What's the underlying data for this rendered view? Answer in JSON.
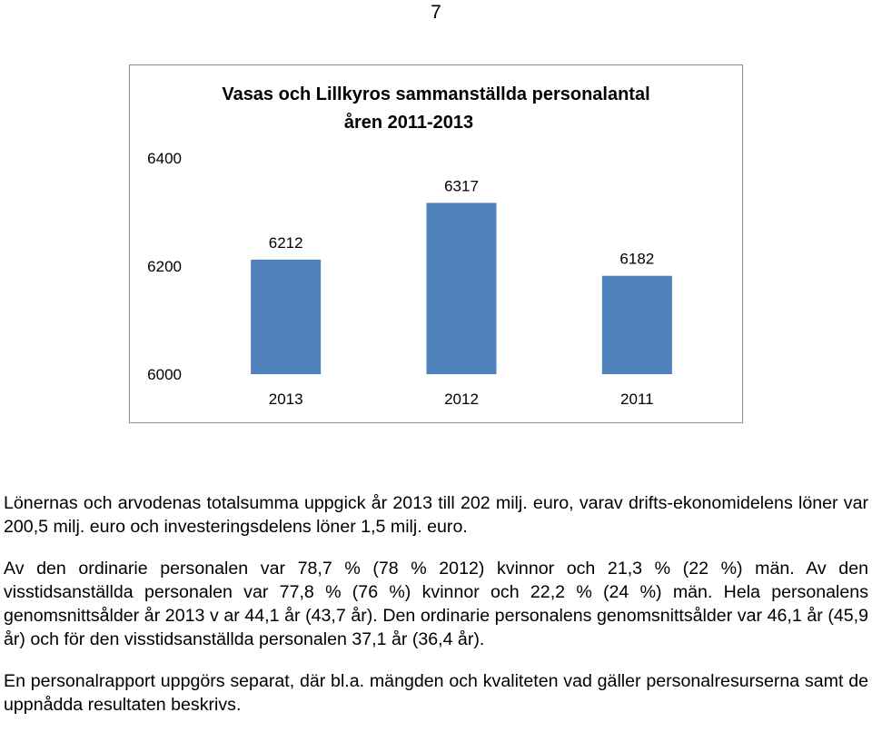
{
  "page": {
    "number": "7"
  },
  "chart_data": {
    "type": "bar",
    "title_lines": [
      "Vasas och Lillkyros sammanställda personalantal",
      "åren 2011-2013"
    ],
    "categories": [
      "2013",
      "2012",
      "2011"
    ],
    "values": [
      6212,
      6317,
      6182
    ],
    "data_labels": [
      "6212",
      "6317",
      "6182"
    ],
    "ylim": [
      6000,
      6400
    ],
    "yticks": [
      "6000",
      "6200",
      "6400"
    ],
    "grid": false,
    "legend": "none",
    "bar_color": "#4F81BD"
  },
  "text": {
    "p1": "Lönernas och arvodenas totalsumma uppgick år 2013 till 202 milj. euro, varav drifts-ekonomidelens löner var 200,5 milj. euro och investeringsdelens löner 1,5 milj. euro.",
    "p2": "Av den ordinarie personalen var 78,7 % (78 % 2012) kvinnor och 21,3 % (22 %) män. Av den visstidsanställda personalen var 77,8 % (76 %) kvinnor och 22,2 % (24 %) män. Hela personalens genomsnittsålder år 2013 v ar 44,1 år (43,7 år). Den ordinarie personalens genomsnittsålder var 46,1 år (45,9 år) och för den visstidsanställda personalen 37,1 år (36,4 år).",
    "p3": "En personalrapport uppgörs separat, där bl.a. mängden och kvaliteten vad gäller personalresurserna samt de uppnådda resultaten beskrivs."
  }
}
